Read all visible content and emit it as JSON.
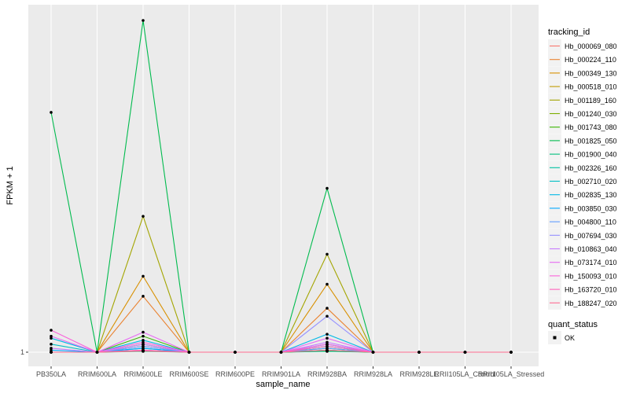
{
  "chart_data": {
    "type": "line",
    "xlabel": "sample_name",
    "ylabel": "FPKM + 1",
    "ylim": [
      1,
      84
    ],
    "y_ticks": [
      1
    ],
    "grid": true,
    "categories": [
      "PB350LA",
      "RRIM600LA",
      "RRIM600LE",
      "RRIM600SE",
      "RRIM600PE",
      "RRIM901LA",
      "RRIM928BA",
      "RRIM928LA",
      "RRIM928LE",
      "RRII105LA_Control",
      "RRII105LA_Stressed"
    ],
    "legend_title": "tracking_id",
    "legend_position": "right",
    "series": [
      {
        "name": "Hb_000069_080",
        "color": "#F8766D",
        "values": [
          1,
          1,
          1.5,
          1,
          1,
          1,
          1.5,
          1,
          1,
          1,
          1
        ]
      },
      {
        "name": "Hb_000224_110",
        "color": "#EA8331",
        "values": [
          1,
          1,
          15,
          1,
          1,
          1,
          12,
          1,
          1,
          1,
          1
        ]
      },
      {
        "name": "Hb_000349_130",
        "color": "#D89000",
        "values": [
          1,
          1,
          20,
          1,
          1,
          1,
          18,
          1,
          1,
          1,
          1
        ]
      },
      {
        "name": "Hb_000518_010",
        "color": "#C09B00",
        "values": [
          1,
          1,
          1.4,
          1,
          1,
          1,
          1.4,
          1,
          1,
          1,
          1
        ]
      },
      {
        "name": "Hb_001189_160",
        "color": "#A3A500",
        "values": [
          1,
          1,
          35,
          1,
          1,
          1,
          25.5,
          1,
          1,
          1,
          1
        ]
      },
      {
        "name": "Hb_001240_030",
        "color": "#7CAE00",
        "values": [
          1,
          1,
          3,
          1,
          1,
          1,
          1.3,
          1,
          1,
          1,
          1
        ]
      },
      {
        "name": "Hb_001743_080",
        "color": "#39B600",
        "values": [
          1,
          1,
          5,
          1,
          1,
          1,
          2,
          1,
          1,
          1,
          1
        ]
      },
      {
        "name": "Hb_001825_050",
        "color": "#00BB4E",
        "values": [
          61,
          1,
          84,
          1,
          1,
          1,
          42,
          1,
          1,
          1,
          1
        ]
      },
      {
        "name": "Hb_001900_040",
        "color": "#00BF7D",
        "values": [
          1,
          1,
          1.2,
          1,
          1,
          1,
          1.2,
          1,
          1,
          1,
          1
        ]
      },
      {
        "name": "Hb_002326_160",
        "color": "#00C1A3",
        "values": [
          1,
          1,
          2,
          1,
          1,
          1,
          1.5,
          1,
          1,
          1,
          1
        ]
      },
      {
        "name": "Hb_002710_020",
        "color": "#00BFC4",
        "values": [
          3,
          1,
          2.5,
          1,
          1,
          1,
          2.5,
          1,
          1,
          1,
          1
        ]
      },
      {
        "name": "Hb_002835_130",
        "color": "#00B8E7",
        "values": [
          4.5,
          1,
          4,
          1,
          1,
          1,
          5.5,
          1,
          1,
          1,
          1
        ]
      },
      {
        "name": "Hb_003850_030",
        "color": "#00A9FF",
        "values": [
          1.5,
          1,
          2,
          1,
          1,
          1,
          3,
          1,
          1,
          1,
          1
        ]
      },
      {
        "name": "Hb_004800_110",
        "color": "#619CFF",
        "values": [
          1,
          1,
          1.5,
          1,
          1,
          1,
          2,
          1,
          1,
          1,
          1
        ]
      },
      {
        "name": "Hb_007694_030",
        "color": "#9590FF",
        "values": [
          1,
          1,
          2.5,
          1,
          1,
          1,
          10,
          1,
          1,
          1,
          1
        ]
      },
      {
        "name": "Hb_010863_040",
        "color": "#C77CFF",
        "values": [
          2,
          1,
          3,
          1,
          1,
          1,
          3.5,
          1,
          1,
          1,
          1
        ]
      },
      {
        "name": "Hb_073174_010",
        "color": "#E76BF3",
        "values": [
          5,
          1,
          6,
          1,
          1,
          1,
          4.5,
          1,
          1,
          1,
          1
        ]
      },
      {
        "name": "Hb_150093_010",
        "color": "#FA62DB",
        "values": [
          6.5,
          1,
          3.5,
          1,
          1,
          1,
          3,
          1,
          1,
          1,
          1
        ]
      },
      {
        "name": "Hb_163720_010",
        "color": "#FF62BC",
        "values": [
          1,
          1,
          1.5,
          1,
          1,
          1,
          2.5,
          1,
          1,
          1,
          1
        ]
      },
      {
        "name": "Hb_188247_020",
        "color": "#FF6C91",
        "values": [
          1,
          1,
          1.3,
          1,
          1,
          1,
          1.5,
          1,
          1,
          1,
          1
        ]
      }
    ],
    "point_legend": {
      "title": "quant_status",
      "items": [
        "OK"
      ]
    }
  }
}
